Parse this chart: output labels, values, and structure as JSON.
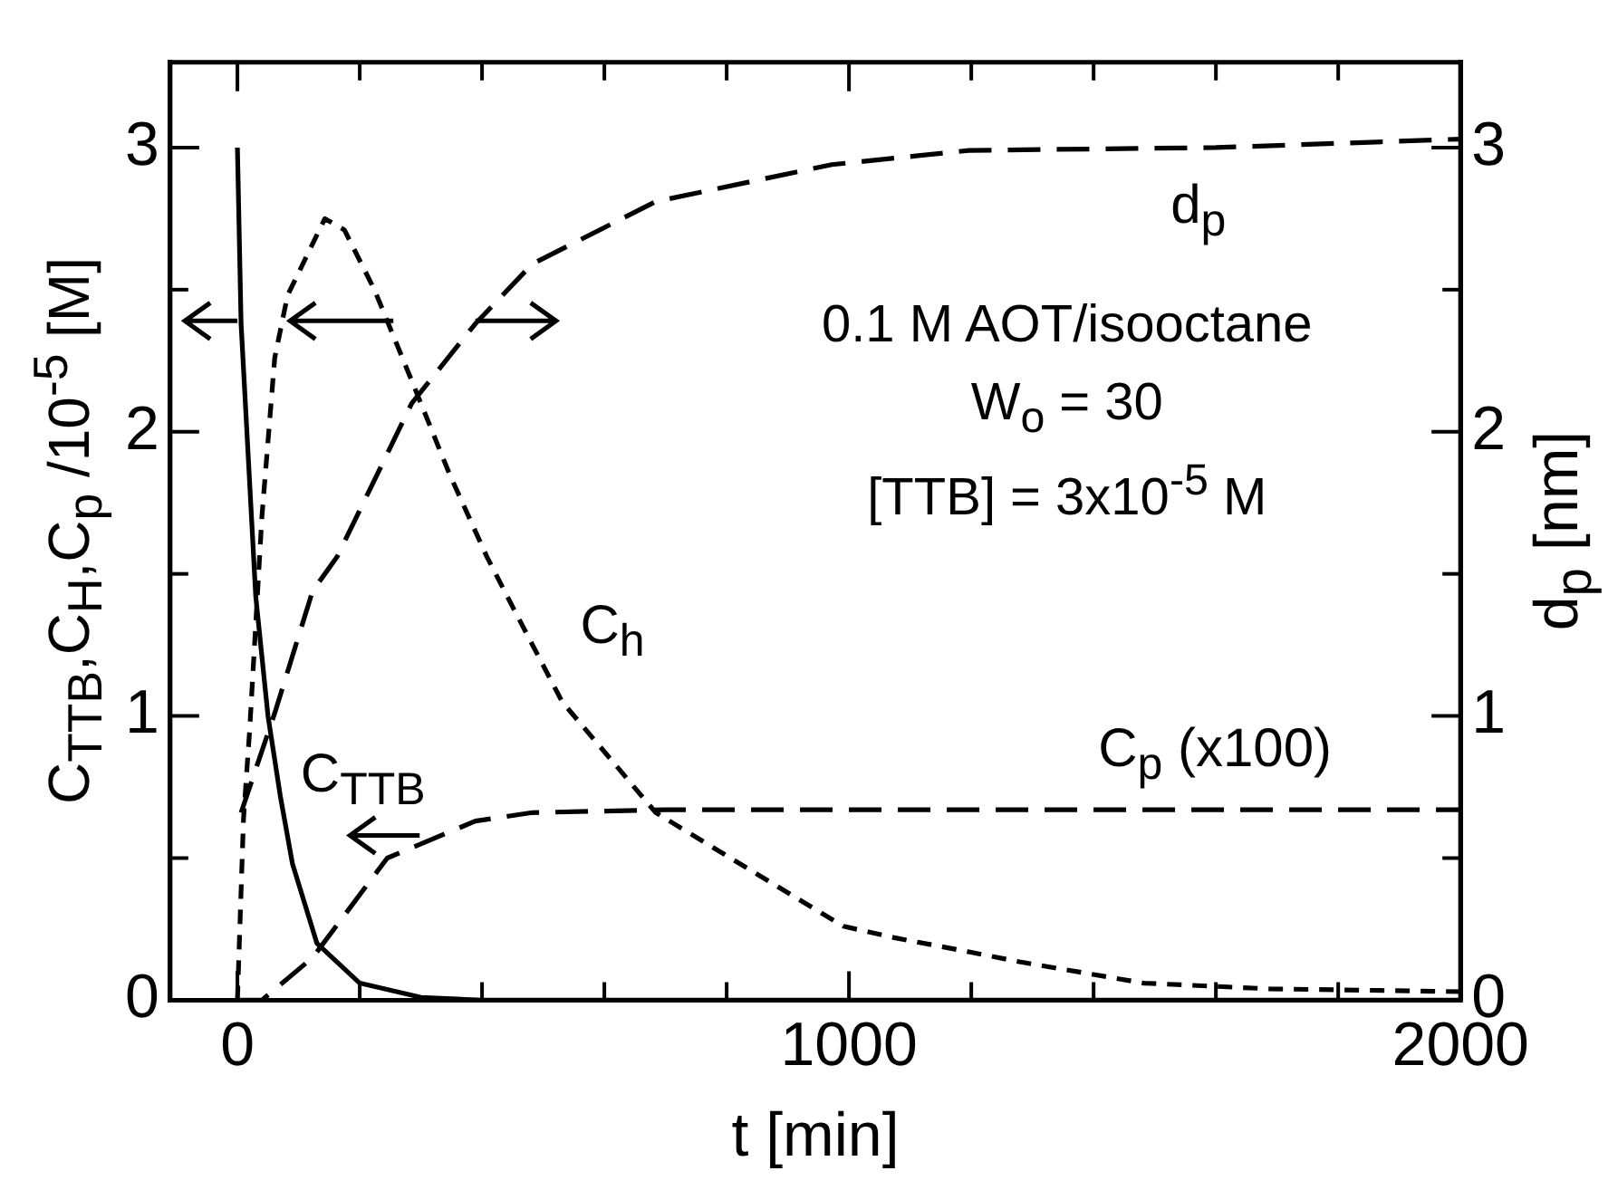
{
  "chart_data": {
    "type": "line",
    "xlabel": "t  [min]",
    "ylabel": "C$_{TTB}$,C$_{H}$,C$_{p}$ /10$^{-5}$  [M]",
    "y2label": "d$_{p}$  [nm]",
    "xlim": [
      -110,
      2000
    ],
    "xticks": [
      0,
      {
        "value": 200,
        "label": null
      },
      {
        "value": 400,
        "label": null
      },
      {
        "value": 600,
        "label": null
      },
      {
        "value": 800,
        "label": null
      },
      1000,
      {
        "value": 1200,
        "label": null
      },
      {
        "value": 1400,
        "label": null
      },
      {
        "value": 1600,
        "label": null
      },
      {
        "value": 1800,
        "label": null
      },
      2000
    ],
    "ylim": [
      0,
      3.3
    ],
    "yticks": [
      0,
      {
        "value": 0.5,
        "label": null
      },
      1,
      {
        "value": 1.5,
        "label": null
      },
      2,
      {
        "value": 2.5,
        "label": null
      },
      3
    ],
    "y2lim": [
      0,
      3.3
    ],
    "y2ticks": [
      0,
      {
        "value": 0.5,
        "label": null
      },
      1,
      {
        "value": 1.5,
        "label": null
      },
      2,
      {
        "value": 2.5,
        "label": null
      },
      3
    ],
    "marker": "none",
    "annotations": [
      "0.1 M AOT/isooctane",
      "W$_{o}$ = 30",
      "[TTB] = 3x10$^{-5}$ M"
    ],
    "series": [
      {
        "name": "C$_{TTB}$",
        "color": "#000000",
        "line_style": "solid",
        "x": [
          0,
          6,
          30,
          50,
          70,
          90,
          130,
          200,
          300,
          400,
          2000
        ],
        "values": [
          3.0,
          2.38,
          1.42,
          1.0,
          0.72,
          0.48,
          0.2,
          0.06,
          0.01,
          0,
          0
        ]
      },
      {
        "name": "C$_{h}$",
        "color": "#000000",
        "line_style": "dotted",
        "x": [
          0,
          10,
          20,
          40,
          61,
          82,
          143,
          175,
          224,
          285,
          347,
          408,
          451,
          531,
          684,
          837,
          991,
          1074,
          1196,
          1279,
          1482,
          1687,
          2000
        ],
        "values": [
          0,
          0.64,
          0.95,
          1.7,
          2.26,
          2.48,
          2.75,
          2.71,
          2.5,
          2.18,
          1.85,
          1.56,
          1.38,
          1.05,
          0.66,
          0.46,
          0.26,
          0.22,
          0.17,
          0.135,
          0.06,
          0.04,
          0.03
        ]
      },
      {
        "name": "C$_{p}$ (x100)",
        "color": "#000000",
        "line_style": "dashed",
        "x": [
          0,
          40,
          123,
          245,
          389,
          482,
          700,
          1000,
          1500,
          2000
        ],
        "values": [
          0,
          0,
          0.15,
          0.5,
          0.63,
          0.66,
          0.67,
          0.67,
          0.67,
          0.67
        ]
      },
      {
        "name": "d$_{p}$",
        "color": "#000000",
        "line_style": "dashed",
        "axis": "y2",
        "x": [
          6,
          61,
          123,
          163,
          285,
          389,
          482,
          684,
          972,
          1196,
          1600,
          2000
        ],
        "values": [
          0.66,
          1.01,
          1.44,
          1.56,
          2.1,
          2.38,
          2.59,
          2.81,
          2.94,
          2.99,
          3.0,
          3.03
        ]
      }
    ]
  }
}
